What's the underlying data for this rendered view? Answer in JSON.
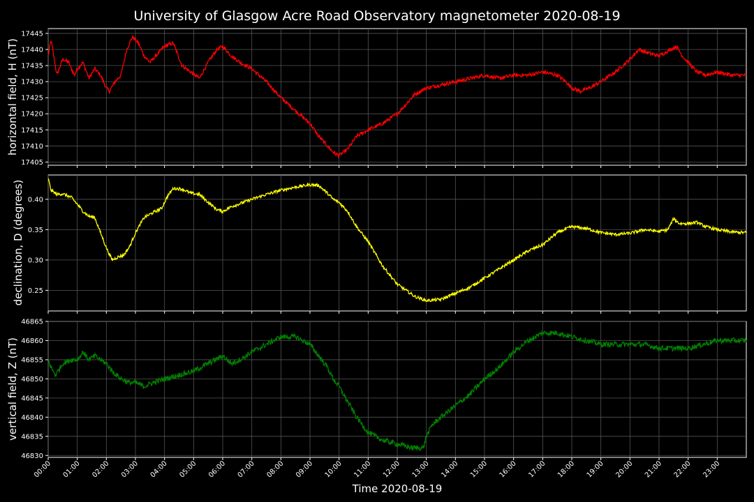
{
  "chart_data": {
    "type": "line",
    "title": "University of Glasgow Acre Road Observatory magnetometer 2020-08-19",
    "xlabel": "Time 2020-08-19",
    "xlim_hours": [
      0,
      24
    ],
    "x_tick_labels": [
      "00:00",
      "01:00",
      "02:00",
      "03:00",
      "04:00",
      "05:00",
      "06:00",
      "07:00",
      "08:00",
      "09:00",
      "10:00",
      "11:00",
      "12:00",
      "13:00",
      "14:00",
      "15:00",
      "16:00",
      "17:00",
      "18:00",
      "19:00",
      "20:00",
      "21:00",
      "22:00",
      "23:00"
    ],
    "grid": true,
    "panels": [
      {
        "ylabel": "horizontal field, H (nT)",
        "color": "#ff0000",
        "ylim": [
          17404,
          17446.5
        ],
        "y_ticks": [
          17405,
          17410,
          17415,
          17420,
          17425,
          17430,
          17435,
          17440,
          17445
        ],
        "y_tick_labels": [
          "17405",
          "17410",
          "17415",
          "17420",
          "17425",
          "17430",
          "17435",
          "17440",
          "17445"
        ],
        "noise": 0.6,
        "x": [
          0,
          0.1,
          0.3,
          0.5,
          0.7,
          0.9,
          1.0,
          1.2,
          1.4,
          1.6,
          1.8,
          2.0,
          2.1,
          2.3,
          2.5,
          2.7,
          2.9,
          3.1,
          3.3,
          3.5,
          3.8,
          4.0,
          4.3,
          4.6,
          4.9,
          5.2,
          5.5,
          5.8,
          6.0,
          6.3,
          6.6,
          7.0,
          7.5,
          8.0,
          8.5,
          9.0,
          9.3,
          9.6,
          9.8,
          10.0,
          10.3,
          10.6,
          11.0,
          11.5,
          12.0,
          12.3,
          12.6,
          13.0,
          13.5,
          14.0,
          14.5,
          15.0,
          15.5,
          16.0,
          16.5,
          17.0,
          17.5,
          17.8,
          18.0,
          18.3,
          18.6,
          19.0,
          19.5,
          20.0,
          20.3,
          20.6,
          21.0,
          21.4,
          21.6,
          21.8,
          22.0,
          22.3,
          22.6,
          23.0,
          23.5,
          24.0
        ],
        "values": [
          17438,
          17443,
          17432,
          17437,
          17436,
          17432,
          17434,
          17436,
          17431,
          17434,
          17432,
          17428,
          17427,
          17430,
          17432,
          17440,
          17444,
          17442,
          17438,
          17436,
          17439,
          17441,
          17442,
          17435,
          17433,
          17431,
          17436,
          17440,
          17441,
          17438,
          17436,
          17434,
          17430,
          17425,
          17421,
          17417,
          17413,
          17410,
          17408,
          17407,
          17409,
          17413,
          17415,
          17417,
          17420,
          17423,
          17426,
          17428,
          17429,
          17430,
          17431,
          17432,
          17431,
          17432,
          17432,
          17433,
          17432,
          17430,
          17428,
          17427,
          17428,
          17430,
          17433,
          17437,
          17440,
          17439,
          17438,
          17440,
          17441,
          17438,
          17436,
          17433,
          17432,
          17433,
          17432,
          17432
        ]
      },
      {
        "ylabel": "declination, D (degrees)",
        "color": "#ffff00",
        "ylim": [
          0.216,
          0.44
        ],
        "y_ticks": [
          0.25,
          0.3,
          0.35,
          0.4
        ],
        "y_tick_labels": [
          "0.25",
          "0.30",
          "0.35",
          "0.40"
        ],
        "noise": 0.0025,
        "x": [
          0,
          0.1,
          0.3,
          0.5,
          0.8,
          1.0,
          1.2,
          1.4,
          1.6,
          1.8,
          2.0,
          2.2,
          2.4,
          2.6,
          2.8,
          3.0,
          3.3,
          3.6,
          3.9,
          4.1,
          4.3,
          4.6,
          4.9,
          5.2,
          5.5,
          5.8,
          6.0,
          6.3,
          6.6,
          7.0,
          7.5,
          8.0,
          8.5,
          9.0,
          9.3,
          9.6,
          9.8,
          10.0,
          10.3,
          10.6,
          11.0,
          11.5,
          12.0,
          12.3,
          12.6,
          13.0,
          13.5,
          14.0,
          14.5,
          15.0,
          15.5,
          16.0,
          16.5,
          17.0,
          17.5,
          18.0,
          18.5,
          19.0,
          19.5,
          20.0,
          20.5,
          21.0,
          21.3,
          21.5,
          21.7,
          22.0,
          22.3,
          22.6,
          23.0,
          23.5,
          24.0
        ],
        "values": [
          0.435,
          0.415,
          0.408,
          0.409,
          0.403,
          0.392,
          0.38,
          0.372,
          0.37,
          0.345,
          0.32,
          0.3,
          0.305,
          0.308,
          0.322,
          0.345,
          0.37,
          0.378,
          0.385,
          0.405,
          0.418,
          0.417,
          0.41,
          0.408,
          0.395,
          0.383,
          0.38,
          0.388,
          0.393,
          0.4,
          0.408,
          0.415,
          0.42,
          0.424,
          0.423,
          0.41,
          0.4,
          0.395,
          0.38,
          0.355,
          0.33,
          0.29,
          0.26,
          0.25,
          0.24,
          0.233,
          0.235,
          0.245,
          0.255,
          0.27,
          0.285,
          0.3,
          0.315,
          0.325,
          0.345,
          0.355,
          0.352,
          0.345,
          0.342,
          0.344,
          0.35,
          0.347,
          0.35,
          0.368,
          0.36,
          0.36,
          0.362,
          0.355,
          0.35,
          0.346,
          0.345
        ]
      },
      {
        "ylabel": "vertical field, Z (nT)",
        "color": "#008000",
        "ylim": [
          46829.5,
          46865
        ],
        "y_ticks": [
          46830,
          46835,
          46840,
          46845,
          46850,
          46855,
          46860,
          46865
        ],
        "y_tick_labels": [
          "46830",
          "46835",
          "46840",
          "46845",
          "46850",
          "46855",
          "46860",
          "46865"
        ],
        "noise": 0.7,
        "x": [
          0,
          0.1,
          0.25,
          0.5,
          0.8,
          1.0,
          1.2,
          1.4,
          1.6,
          1.8,
          2.0,
          2.2,
          2.5,
          2.8,
          3.0,
          3.3,
          3.6,
          4.0,
          4.5,
          5.0,
          5.5,
          6.0,
          6.3,
          6.6,
          7.0,
          7.5,
          8.0,
          8.5,
          9.0,
          9.3,
          9.6,
          9.8,
          10.0,
          10.3,
          10.6,
          11.0,
          11.5,
          12.0,
          12.5,
          12.9,
          13.0,
          13.2,
          13.5,
          14.0,
          14.5,
          15.0,
          15.5,
          16.0,
          16.5,
          17.0,
          17.5,
          18.0,
          18.5,
          19.0,
          19.5,
          20.0,
          20.5,
          21.0,
          21.5,
          22.0,
          22.5,
          23.0,
          23.5,
          24.0
        ],
        "values": [
          46855,
          46853,
          46851,
          46854,
          46855,
          46855,
          46857,
          46855,
          46856,
          46855,
          46854,
          46852,
          46850,
          46849,
          46849,
          46848,
          46849,
          46850,
          46851,
          46852,
          46854,
          46856,
          46854,
          46855,
          46857,
          46859,
          46861,
          46861,
          46859,
          46856,
          46853,
          46850,
          46848,
          46844,
          46840,
          46836,
          46834,
          46833,
          46832,
          46832,
          46835,
          46838,
          46840,
          46843,
          46846,
          46850,
          46853,
          46857,
          46860,
          46862,
          46862,
          46861,
          46860,
          46859,
          46859,
          46859,
          46859,
          46858,
          46858,
          46858,
          46859,
          46860,
          46860,
          46860
        ]
      }
    ]
  }
}
